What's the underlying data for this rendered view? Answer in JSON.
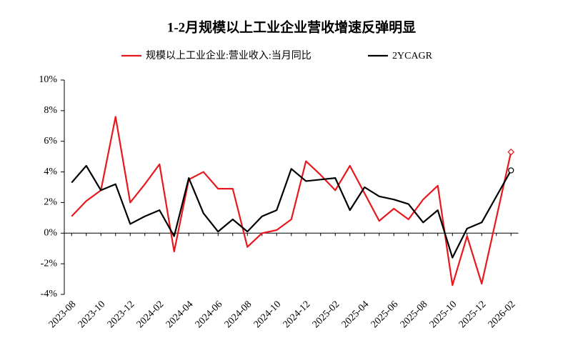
{
  "chart_data": {
    "type": "line",
    "title": "1-2月规模以上工业企业营收增速反弹明显",
    "categories": [
      "2023-08",
      null,
      "2023-10",
      null,
      "2023-12",
      null,
      "2024-02",
      null,
      "2024-04",
      null,
      "2024-06",
      null,
      "2024-08",
      null,
      "2024-10",
      null,
      "2024-12",
      null,
      "2025-02",
      null,
      "2025-04",
      null,
      "2025-06",
      null,
      "2025-08",
      null,
      "2025-10",
      null,
      "2025-12",
      null,
      "2026-02"
    ],
    "series": [
      {
        "name": "规模以上工业企业:营业收入:当月同比",
        "color": "#e8191e",
        "values": [
          1.1,
          2.1,
          2.8,
          7.6,
          2.0,
          3.2,
          4.5,
          -1.2,
          3.5,
          4.0,
          2.9,
          2.9,
          -0.9,
          0.0,
          0.2,
          0.9,
          4.7,
          3.8,
          2.8,
          4.4,
          2.6,
          0.8,
          1.6,
          0.9,
          2.2,
          3.1,
          -3.4,
          -0.2,
          -3.3,
          1.0,
          5.3
        ]
      },
      {
        "name": "2YCAGR",
        "color": "#000000",
        "values": [
          3.3,
          4.4,
          2.8,
          3.2,
          0.6,
          1.1,
          1.5,
          -0.2,
          3.6,
          1.3,
          0.1,
          0.9,
          0.1,
          1.1,
          1.5,
          4.2,
          3.4,
          3.5,
          3.6,
          1.5,
          3.0,
          2.4,
          2.2,
          1.9,
          0.7,
          1.5,
          -1.6,
          0.3,
          0.7,
          2.4,
          4.1
        ]
      }
    ],
    "ylim": [
      -4,
      10
    ],
    "yticks": [
      {
        "value": -4,
        "label": "-4%"
      },
      {
        "value": -2,
        "label": "-2%"
      },
      {
        "value": 0,
        "label": "0%"
      },
      {
        "value": 2,
        "label": "2%"
      },
      {
        "value": 4,
        "label": "4%"
      },
      {
        "value": 6,
        "label": "6%"
      },
      {
        "value": 8,
        "label": "8%"
      },
      {
        "value": 10,
        "label": "10%"
      }
    ],
    "legend": "top"
  }
}
